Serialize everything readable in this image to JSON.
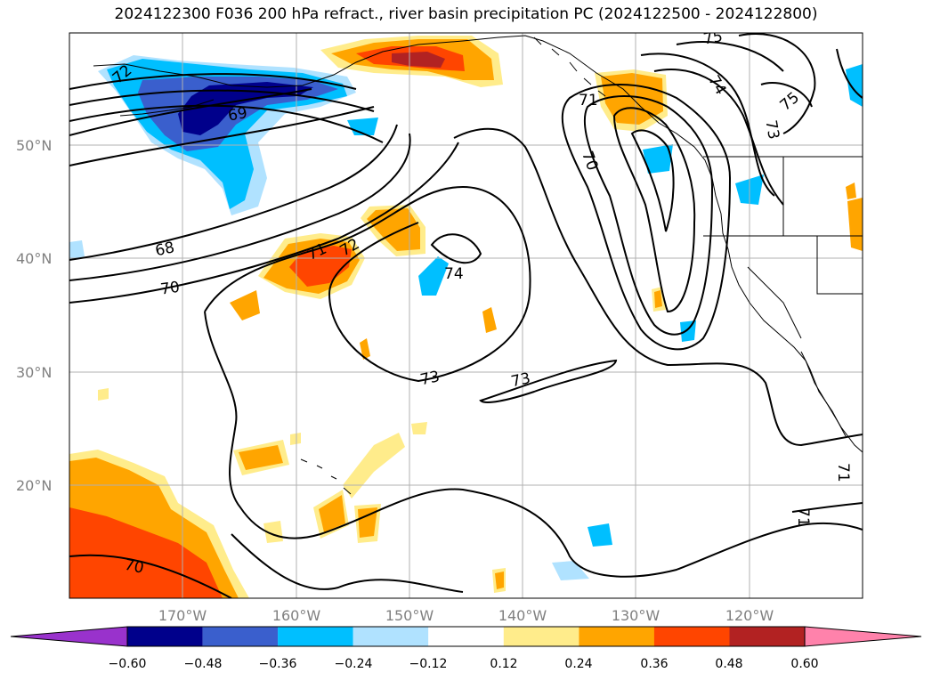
{
  "title": "2024122300 F036 200 hPa refract., river basin precipitation PC (2024122500 - 2024122800)",
  "lat_labels": [
    "50°N",
    "40°N",
    "30°N",
    "20°N"
  ],
  "lon_labels": [
    "170°W",
    "160°W",
    "150°W",
    "140°W",
    "130°W",
    "120°W"
  ],
  "colorbar": {
    "ticks": [
      "−0.60",
      "−0.48",
      "−0.36",
      "−0.24",
      "−0.12",
      "0.12",
      "0.24",
      "0.36",
      "0.48",
      "0.60"
    ],
    "colors": [
      "#9932CC",
      "#00008B",
      "#3A5FCD",
      "#00BFFF",
      "#B0E2FF",
      "#FFFFFF",
      "#FFEC8B",
      "#FFA500",
      "#FF4500",
      "#B22222",
      "#FF82AB"
    ]
  },
  "contour_labels": [
    "72",
    "69",
    "68",
    "70",
    "71",
    "72",
    "74",
    "73",
    "73",
    "71",
    "70",
    "75",
    "74",
    "73",
    "75",
    "71",
    "71",
    "70"
  ],
  "palette": {
    "dark_navy": "#00008B",
    "royal_blue": "#3A5FCD",
    "deep_sky": "#00BFFF",
    "light_blue": "#B0E2FF",
    "light_yellow": "#FFEC8B",
    "orange": "#FFA500",
    "orange_red": "#FF4500",
    "firebrick": "#B22222"
  }
}
